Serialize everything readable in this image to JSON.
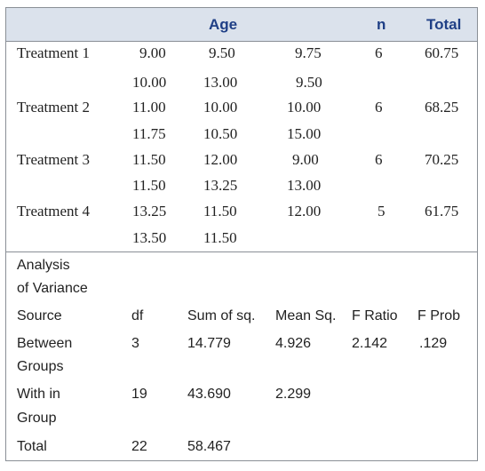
{
  "header": {
    "age": "Age",
    "n": "n",
    "total": "Total"
  },
  "treatments": [
    {
      "label": "Treatment 1",
      "row1": [
        "9.00",
        "9.50",
        "9.75"
      ],
      "n": "6",
      "total": "60.75",
      "row2": [
        "10.00",
        "13.00",
        "9.50"
      ]
    },
    {
      "label": "Treatment 2",
      "row1": [
        "11.00",
        "10.00",
        "10.00"
      ],
      "n": "6",
      "total": "68.25",
      "row2": [
        "11.75",
        "10.50",
        "15.00"
      ]
    },
    {
      "label": "Treatment 3",
      "row1": [
        "11.50",
        "12.00",
        "9.00"
      ],
      "n": "6",
      "total": "70.25",
      "row2": [
        "11.50",
        "13.25",
        "13.00"
      ]
    },
    {
      "label": "Treatment 4",
      "row1": [
        "13.25",
        "11.50",
        "12.00"
      ],
      "n": "5",
      "total": "61.75",
      "row2": [
        "13.50",
        "11.50",
        ""
      ]
    }
  ],
  "anova": {
    "title_line1": "Analysis",
    "title_line2": "of Variance",
    "columns": [
      "Source",
      "df",
      "Sum of sq.",
      "Mean Sq.",
      "F Ratio",
      "F Prob"
    ],
    "rows": [
      {
        "source_line1": "Between",
        "source_line2": "Groups",
        "df": "3",
        "ss": "14.779",
        "ms": "4.926",
        "f": "2.142",
        "p": ".129"
      },
      {
        "source_line1": "With in",
        "source_line2": "Group",
        "df": "19",
        "ss": "43.690",
        "ms": "2.299",
        "f": "",
        "p": ""
      },
      {
        "source_line1": "Total",
        "source_line2": "",
        "df": "22",
        "ss": "58.467",
        "ms": "",
        "f": "",
        "p": ""
      }
    ]
  }
}
